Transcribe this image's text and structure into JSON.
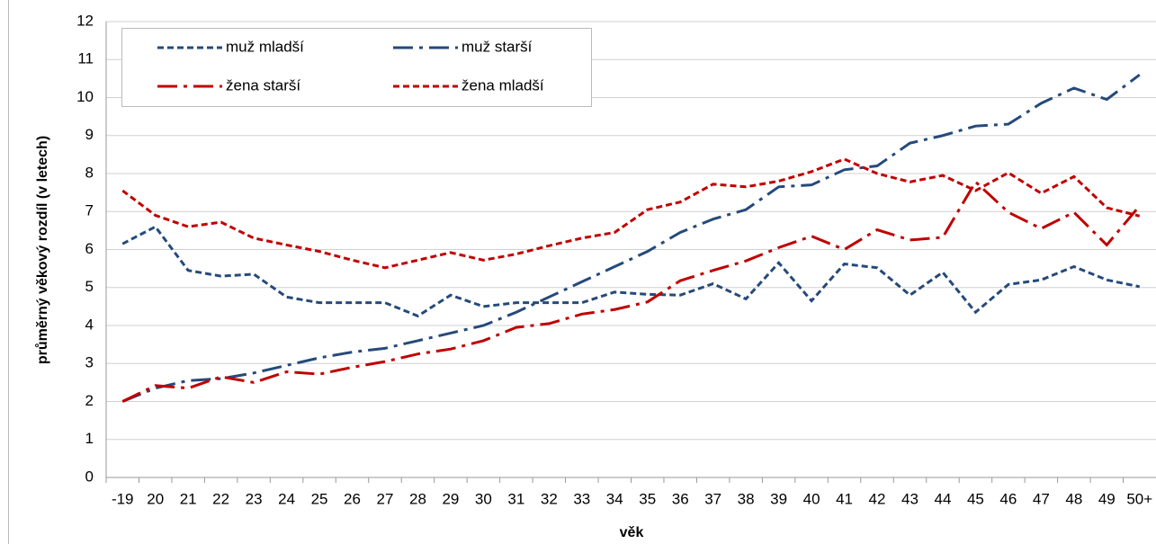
{
  "chart_data": {
    "type": "line",
    "x_label": "věk",
    "y_label": "průměrný věkový rozdíl (v letech)",
    "categories": [
      "-19",
      "20",
      "21",
      "22",
      "23",
      "24",
      "25",
      "26",
      "27",
      "28",
      "29",
      "30",
      "31",
      "32",
      "33",
      "34",
      "35",
      "36",
      "37",
      "38",
      "39",
      "40",
      "41",
      "42",
      "43",
      "44",
      "45",
      "46",
      "47",
      "48",
      "49",
      "50+"
    ],
    "ylim": [
      0,
      12
    ],
    "yticks": [
      0,
      1,
      2,
      3,
      4,
      5,
      6,
      7,
      8,
      9,
      10,
      11,
      12
    ],
    "grid": true,
    "legend": "top-left",
    "series": [
      {
        "name": "muž mladší",
        "color": "#254a7a",
        "style": "dashed",
        "values": [
          6.15,
          6.6,
          5.45,
          5.3,
          5.35,
          4.75,
          4.6,
          4.6,
          4.6,
          4.25,
          4.8,
          4.5,
          4.6,
          4.6,
          4.6,
          4.88,
          4.82,
          4.8,
          5.1,
          4.7,
          5.65,
          4.65,
          5.62,
          5.52,
          4.8,
          5.4,
          4.35,
          5.08,
          5.2,
          5.55,
          5.2,
          5.02
        ]
      },
      {
        "name": "muž starší",
        "color": "#254a7a",
        "style": "dashdot",
        "values": [
          2.0,
          2.35,
          2.55,
          2.6,
          2.75,
          2.95,
          3.15,
          3.3,
          3.4,
          3.6,
          3.8,
          4.0,
          4.35,
          4.75,
          5.15,
          5.55,
          5.95,
          6.45,
          6.8,
          7.05,
          7.65,
          7.7,
          8.1,
          8.2,
          8.8,
          9.0,
          9.25,
          9.3,
          9.85,
          10.25,
          9.95,
          10.6
        ]
      },
      {
        "name": "žena starší",
        "color": "#c00000",
        "style": "dashdot",
        "values": [
          2.0,
          2.42,
          2.35,
          2.65,
          2.5,
          2.78,
          2.72,
          2.9,
          3.05,
          3.25,
          3.38,
          3.6,
          3.95,
          4.05,
          4.3,
          4.42,
          4.62,
          5.18,
          5.45,
          5.7,
          6.05,
          6.35,
          6.0,
          6.52,
          6.25,
          6.32,
          7.78,
          6.98,
          6.55,
          6.98,
          6.12,
          7.15
        ]
      },
      {
        "name": "žena mladší",
        "color": "#c00000",
        "style": "dashed",
        "values": [
          7.55,
          6.9,
          6.6,
          6.72,
          6.3,
          6.12,
          5.95,
          5.72,
          5.52,
          5.72,
          5.92,
          5.72,
          5.88,
          6.1,
          6.3,
          6.45,
          7.05,
          7.25,
          7.72,
          7.65,
          7.8,
          8.05,
          8.38,
          8.0,
          7.78,
          7.95,
          7.55,
          8.02,
          7.48,
          7.92,
          7.1,
          6.88
        ]
      }
    ]
  }
}
